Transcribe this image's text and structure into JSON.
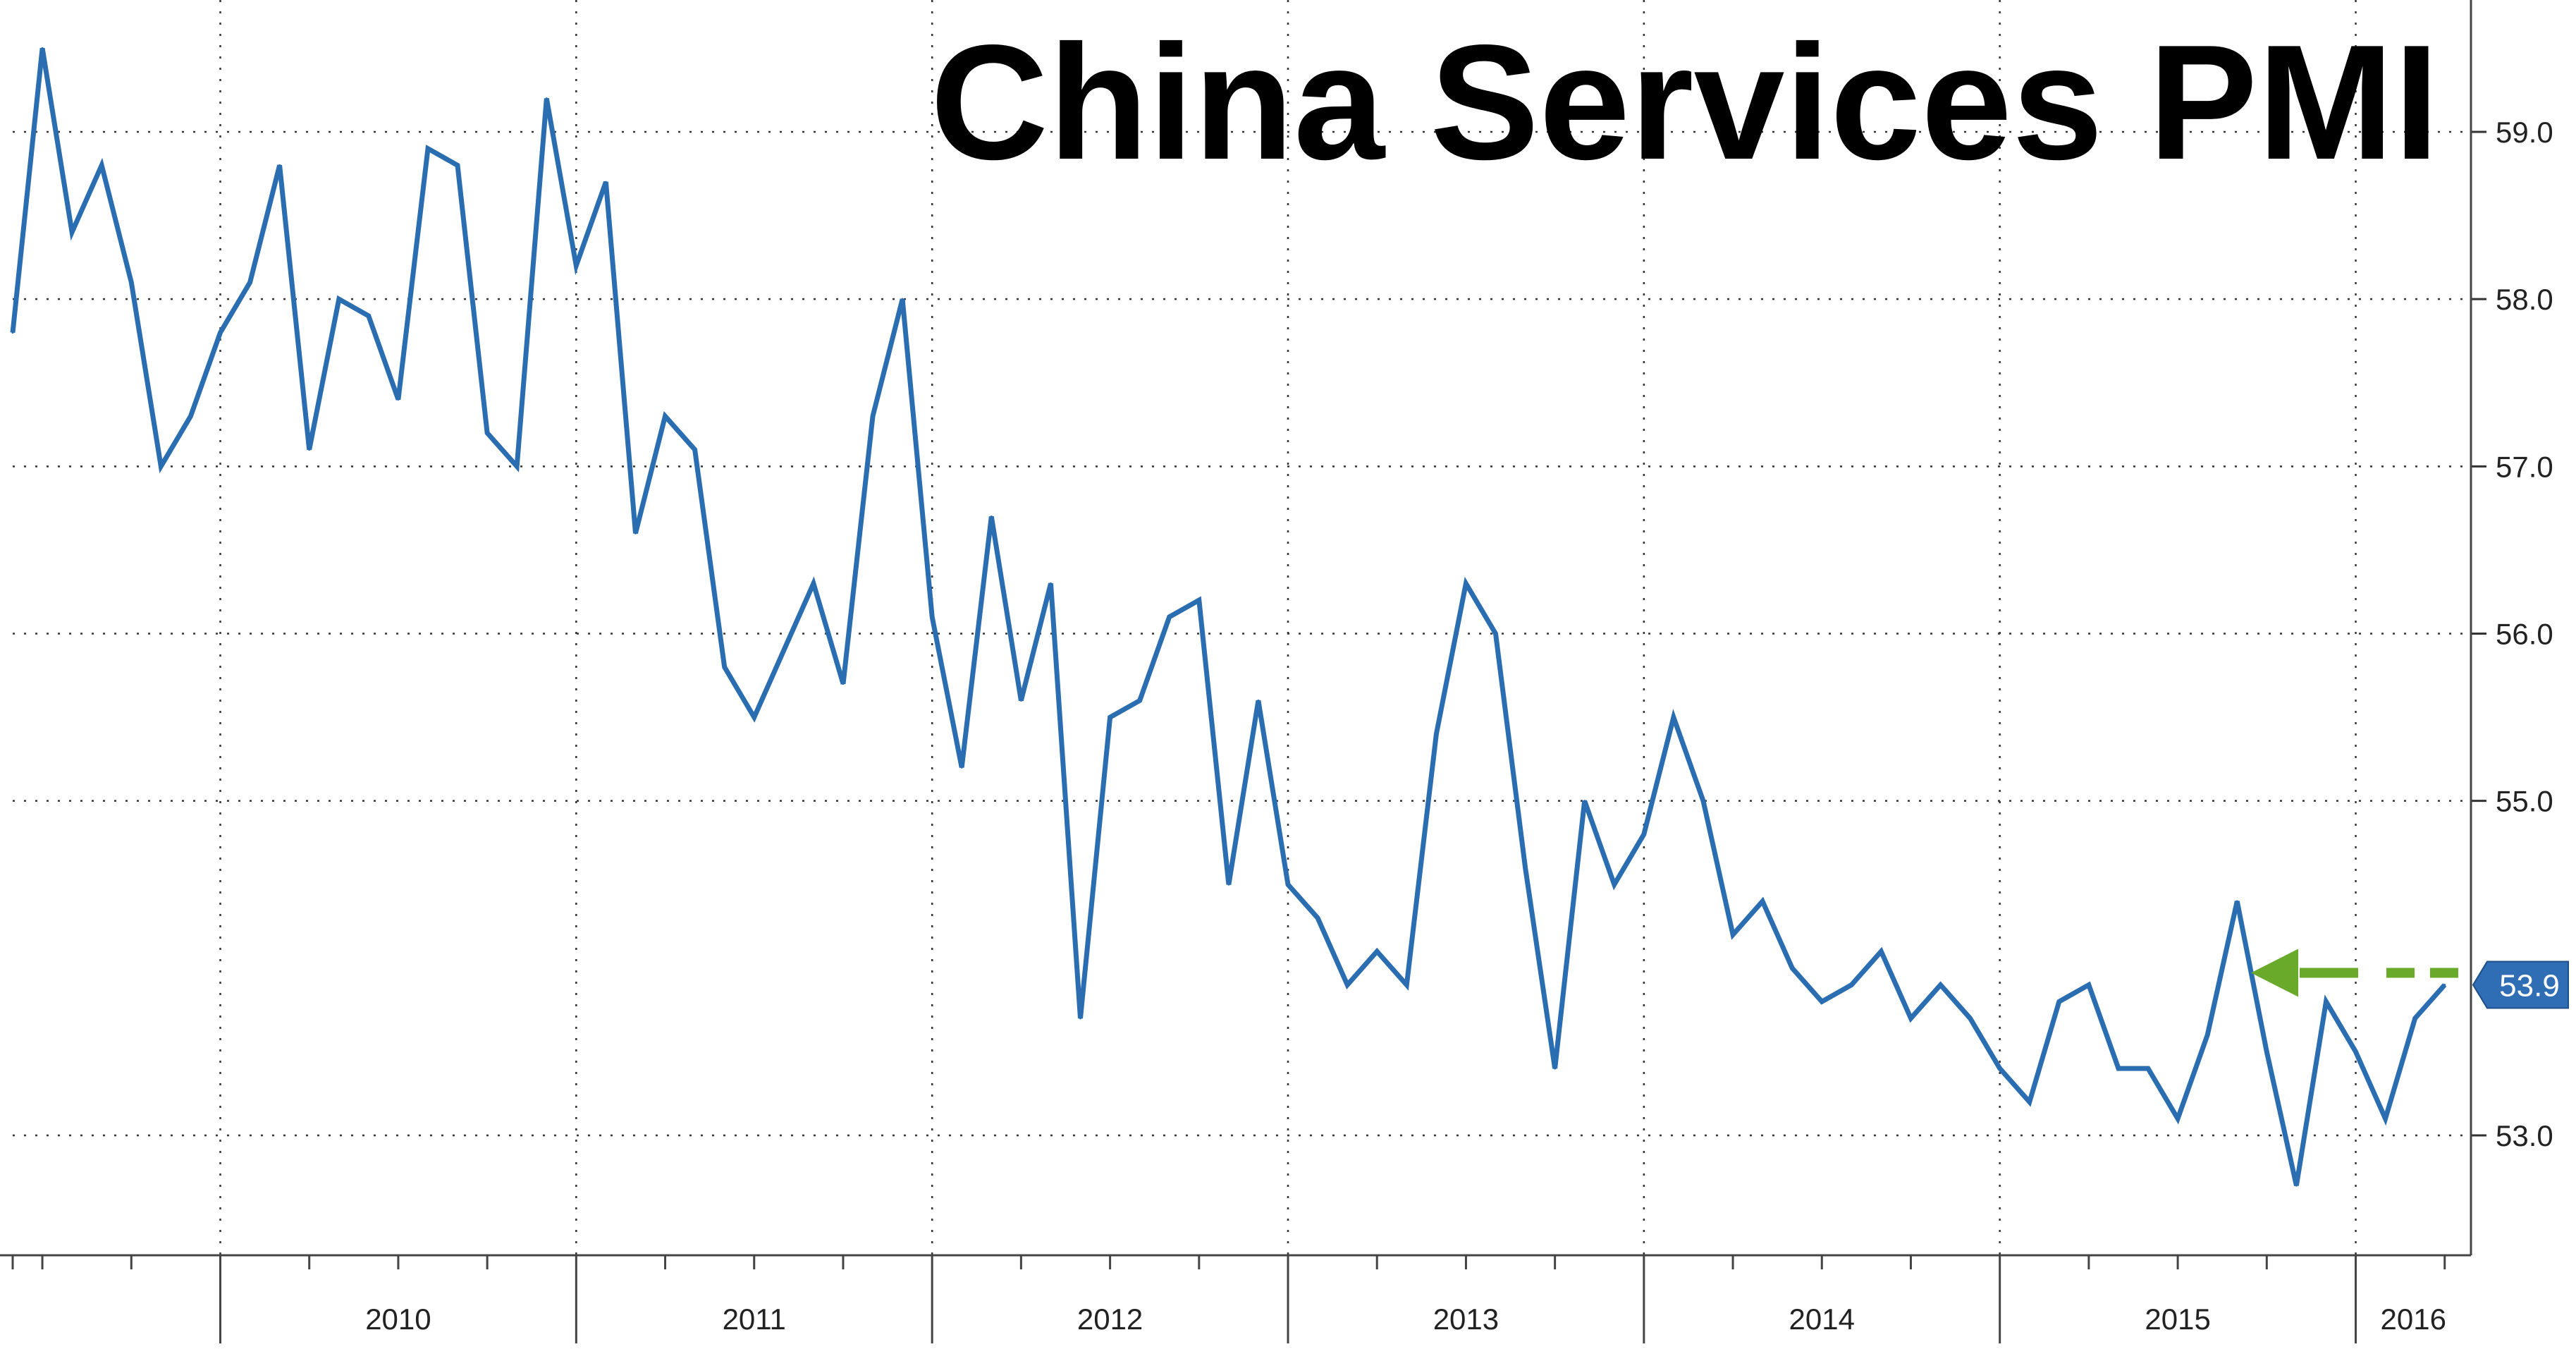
{
  "chart_data": {
    "type": "line",
    "title": "China Services PMI",
    "xlabel": "",
    "ylabel": "",
    "x_start": "2009-06",
    "frequency": "monthly",
    "x_year_labels": [
      "2010",
      "2011",
      "2012",
      "2013",
      "2014",
      "2015",
      "2016"
    ],
    "ylim": [
      52.3,
      59.7
    ],
    "yticks": [
      "53.0",
      "55.0",
      "56.0",
      "57.0",
      "58.0",
      "59.0"
    ],
    "grid": true,
    "legend": "none",
    "series": [
      {
        "color": "#2a6db0",
        "values": [
          57.8,
          59.5,
          58.4,
          58.8,
          58.1,
          57.0,
          57.3,
          57.8,
          58.1,
          58.8,
          57.1,
          58.0,
          57.9,
          57.4,
          58.9,
          58.8,
          57.2,
          57.0,
          59.2,
          58.2,
          58.7,
          56.6,
          57.3,
          57.1,
          55.8,
          55.5,
          55.9,
          56.3,
          55.7,
          57.3,
          58.0,
          56.1,
          55.2,
          56.7,
          55.6,
          56.3,
          53.7,
          55.5,
          55.6,
          56.1,
          56.2,
          54.5,
          55.6,
          54.5,
          54.3,
          53.9,
          54.1,
          53.9,
          55.4,
          56.3,
          56.0,
          54.6,
          53.4,
          55.0,
          54.5,
          54.8,
          55.5,
          55.0,
          54.2,
          54.4,
          54.0,
          53.8,
          53.9,
          54.1,
          53.7,
          53.9,
          53.7,
          53.4,
          53.2,
          53.8,
          53.9,
          53.4,
          53.4,
          53.1,
          53.6,
          54.4,
          53.5,
          52.7,
          53.8,
          53.5,
          53.1,
          53.7,
          53.9
        ]
      }
    ],
    "last_value_label": "53.9",
    "arrow_color": "#6aaa2a"
  }
}
